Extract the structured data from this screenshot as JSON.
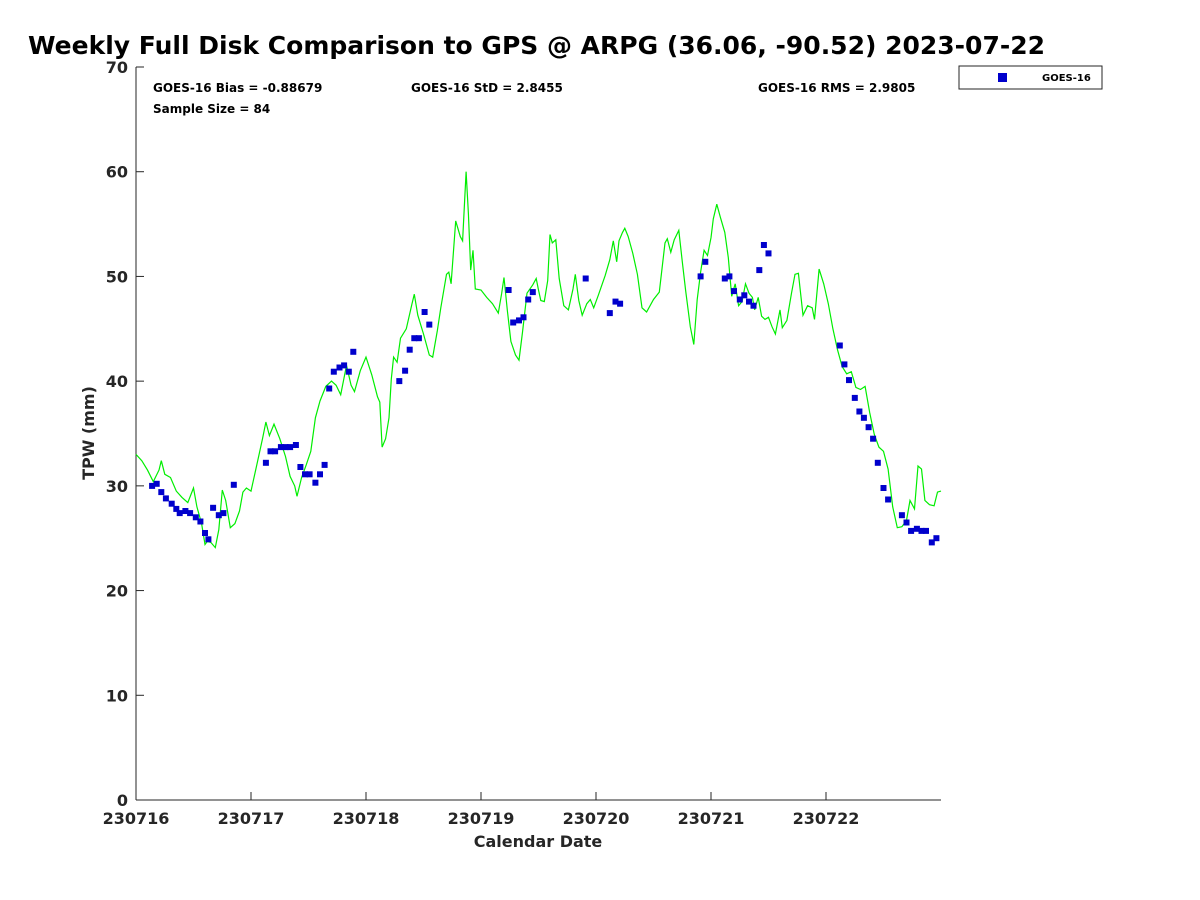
{
  "chart_data": {
    "type": "scatter",
    "title": "Weekly Full Disk Comparison to GPS @ ARPG (36.06, -90.52) 2023-07-22",
    "xlabel": "Calendar Date",
    "ylabel": "TPW (mm)",
    "xlim": [
      0,
      7
    ],
    "ylim": [
      0,
      70
    ],
    "x_ticks": [
      {
        "value": 0,
        "label": "230716"
      },
      {
        "value": 1,
        "label": "230717"
      },
      {
        "value": 2,
        "label": "230718"
      },
      {
        "value": 3,
        "label": "230719"
      },
      {
        "value": 4,
        "label": "230720"
      },
      {
        "value": 5,
        "label": "230721"
      },
      {
        "value": 6,
        "label": "230722"
      }
    ],
    "y_ticks": [
      0,
      10,
      20,
      30,
      40,
      50,
      60,
      70
    ],
    "stats": {
      "bias": "GOES-16 Bias = -0.88679",
      "std": "GOES-16 StD = 2.8455",
      "rms": "GOES-16 RMS = 2.9805",
      "sample": "Sample Size = 84"
    },
    "legend": {
      "position": "top-right",
      "entries": [
        "GOES-16"
      ]
    },
    "colors": {
      "goes": "#0000cc",
      "gps": "#00ee00"
    },
    "series": [
      {
        "name": "GOES-16",
        "marker": "square",
        "points": [
          [
            0.14,
            30.0
          ],
          [
            0.18,
            30.2
          ],
          [
            0.22,
            29.4
          ],
          [
            0.26,
            28.8
          ],
          [
            0.31,
            28.3
          ],
          [
            0.35,
            27.8
          ],
          [
            0.38,
            27.4
          ],
          [
            0.43,
            27.6
          ],
          [
            0.47,
            27.4
          ],
          [
            0.52,
            27.0
          ],
          [
            0.56,
            26.6
          ],
          [
            0.6,
            25.5
          ],
          [
            0.63,
            24.9
          ],
          [
            0.67,
            27.9
          ],
          [
            0.72,
            27.2
          ],
          [
            0.76,
            27.4
          ],
          [
            0.85,
            30.1
          ],
          [
            1.13,
            32.2
          ],
          [
            1.17,
            33.3
          ],
          [
            1.21,
            33.3
          ],
          [
            1.26,
            33.7
          ],
          [
            1.3,
            33.7
          ],
          [
            1.34,
            33.7
          ],
          [
            1.39,
            33.9
          ],
          [
            1.43,
            31.8
          ],
          [
            1.47,
            31.1
          ],
          [
            1.51,
            31.1
          ],
          [
            1.56,
            30.3
          ],
          [
            1.6,
            31.1
          ],
          [
            1.64,
            32.0
          ],
          [
            1.68,
            39.3
          ],
          [
            1.72,
            40.9
          ],
          [
            1.77,
            41.3
          ],
          [
            1.81,
            41.5
          ],
          [
            1.85,
            40.9
          ],
          [
            1.89,
            42.8
          ],
          [
            2.29,
            40.0
          ],
          [
            2.34,
            41.0
          ],
          [
            2.38,
            43.0
          ],
          [
            2.42,
            44.1
          ],
          [
            2.46,
            44.1
          ],
          [
            2.51,
            46.6
          ],
          [
            2.55,
            45.4
          ],
          [
            3.24,
            48.7
          ],
          [
            3.28,
            45.6
          ],
          [
            3.33,
            45.8
          ],
          [
            3.37,
            46.1
          ],
          [
            3.41,
            47.8
          ],
          [
            3.45,
            48.5
          ],
          [
            3.91,
            49.8
          ],
          [
            4.12,
            46.5
          ],
          [
            4.17,
            47.6
          ],
          [
            4.21,
            47.4
          ],
          [
            4.91,
            50.0
          ],
          [
            4.95,
            51.4
          ],
          [
            5.12,
            49.8
          ],
          [
            5.16,
            50.0
          ],
          [
            5.2,
            48.6
          ],
          [
            5.25,
            47.8
          ],
          [
            5.29,
            48.2
          ],
          [
            5.33,
            47.6
          ],
          [
            5.37,
            47.2
          ],
          [
            5.42,
            50.6
          ],
          [
            5.46,
            53.0
          ],
          [
            5.5,
            52.2
          ],
          [
            6.12,
            43.4
          ],
          [
            6.16,
            41.6
          ],
          [
            6.2,
            40.1
          ],
          [
            6.25,
            38.4
          ],
          [
            6.29,
            37.1
          ],
          [
            6.33,
            36.5
          ],
          [
            6.37,
            35.6
          ],
          [
            6.41,
            34.5
          ],
          [
            6.45,
            32.2
          ],
          [
            6.5,
            29.8
          ],
          [
            6.54,
            28.7
          ],
          [
            6.66,
            27.2
          ],
          [
            6.7,
            26.5
          ],
          [
            6.74,
            25.7
          ],
          [
            6.79,
            25.9
          ],
          [
            6.83,
            25.7
          ],
          [
            6.87,
            25.7
          ],
          [
            6.92,
            24.6
          ],
          [
            6.96,
            25.0
          ]
        ]
      },
      {
        "name": "GPS",
        "marker": "line",
        "points": [
          [
            0.0,
            33.0
          ],
          [
            0.05,
            32.4
          ],
          [
            0.1,
            31.5
          ],
          [
            0.15,
            30.4
          ],
          [
            0.2,
            31.5
          ],
          [
            0.22,
            32.4
          ],
          [
            0.25,
            31.1
          ],
          [
            0.3,
            30.8
          ],
          [
            0.35,
            29.5
          ],
          [
            0.4,
            28.9
          ],
          [
            0.45,
            28.4
          ],
          [
            0.5,
            29.8
          ],
          [
            0.53,
            28.0
          ],
          [
            0.57,
            26.4
          ],
          [
            0.6,
            24.4
          ],
          [
            0.62,
            24.7
          ],
          [
            0.65,
            24.6
          ],
          [
            0.69,
            24.1
          ],
          [
            0.72,
            25.8
          ],
          [
            0.75,
            29.6
          ],
          [
            0.78,
            28.6
          ],
          [
            0.82,
            26.0
          ],
          [
            0.86,
            26.4
          ],
          [
            0.9,
            27.6
          ],
          [
            0.93,
            29.4
          ],
          [
            0.96,
            29.8
          ],
          [
            1.0,
            29.5
          ],
          [
            1.05,
            32.0
          ],
          [
            1.1,
            34.5
          ],
          [
            1.13,
            36.1
          ],
          [
            1.16,
            34.8
          ],
          [
            1.2,
            35.9
          ],
          [
            1.25,
            34.5
          ],
          [
            1.3,
            32.8
          ],
          [
            1.34,
            30.9
          ],
          [
            1.38,
            30.0
          ],
          [
            1.4,
            29.0
          ],
          [
            1.44,
            30.8
          ],
          [
            1.48,
            32.0
          ],
          [
            1.52,
            33.3
          ],
          [
            1.56,
            36.5
          ],
          [
            1.6,
            38.1
          ],
          [
            1.65,
            39.5
          ],
          [
            1.7,
            40.0
          ],
          [
            1.74,
            39.6
          ],
          [
            1.78,
            38.7
          ],
          [
            1.83,
            41.5
          ],
          [
            1.87,
            39.6
          ],
          [
            1.9,
            39.0
          ],
          [
            1.95,
            41.0
          ],
          [
            2.0,
            42.3
          ],
          [
            2.05,
            40.6
          ],
          [
            2.1,
            38.5
          ],
          [
            2.12,
            38.0
          ],
          [
            2.14,
            33.7
          ],
          [
            2.17,
            34.5
          ],
          [
            2.2,
            36.5
          ],
          [
            2.22,
            40.2
          ],
          [
            2.24,
            42.3
          ],
          [
            2.27,
            41.8
          ],
          [
            2.3,
            44.1
          ],
          [
            2.35,
            45.0
          ],
          [
            2.4,
            47.4
          ],
          [
            2.42,
            48.3
          ],
          [
            2.45,
            46.3
          ],
          [
            2.5,
            44.5
          ],
          [
            2.55,
            42.5
          ],
          [
            2.58,
            42.3
          ],
          [
            2.62,
            44.8
          ],
          [
            2.65,
            47.0
          ],
          [
            2.7,
            50.2
          ],
          [
            2.72,
            50.4
          ],
          [
            2.74,
            49.3
          ],
          [
            2.78,
            55.3
          ],
          [
            2.82,
            53.8
          ],
          [
            2.84,
            53.4
          ],
          [
            2.87,
            60.0
          ],
          [
            2.89,
            56.0
          ],
          [
            2.91,
            50.6
          ],
          [
            2.93,
            52.5
          ],
          [
            2.95,
            48.8
          ],
          [
            3.0,
            48.7
          ],
          [
            3.05,
            48.0
          ],
          [
            3.1,
            47.4
          ],
          [
            3.15,
            46.5
          ],
          [
            3.18,
            48.4
          ],
          [
            3.2,
            49.9
          ],
          [
            3.23,
            46.7
          ],
          [
            3.26,
            43.8
          ],
          [
            3.3,
            42.5
          ],
          [
            3.33,
            42.0
          ],
          [
            3.36,
            44.6
          ],
          [
            3.4,
            48.4
          ],
          [
            3.45,
            49.2
          ],
          [
            3.48,
            49.8
          ],
          [
            3.5,
            48.7
          ],
          [
            3.52,
            47.7
          ],
          [
            3.55,
            47.6
          ],
          [
            3.58,
            49.6
          ],
          [
            3.6,
            54.0
          ],
          [
            3.62,
            53.2
          ],
          [
            3.65,
            53.5
          ],
          [
            3.68,
            49.8
          ],
          [
            3.72,
            47.2
          ],
          [
            3.76,
            46.8
          ],
          [
            3.8,
            48.8
          ],
          [
            3.82,
            50.2
          ],
          [
            3.85,
            47.7
          ],
          [
            3.88,
            46.3
          ],
          [
            3.92,
            47.4
          ],
          [
            3.95,
            47.8
          ],
          [
            3.98,
            47.0
          ],
          [
            4.02,
            48.2
          ],
          [
            4.08,
            50.1
          ],
          [
            4.12,
            51.6
          ],
          [
            4.15,
            53.4
          ],
          [
            4.18,
            51.4
          ],
          [
            4.2,
            53.4
          ],
          [
            4.23,
            54.2
          ],
          [
            4.25,
            54.6
          ],
          [
            4.28,
            53.8
          ],
          [
            4.32,
            52.2
          ],
          [
            4.36,
            50.2
          ],
          [
            4.4,
            47.0
          ],
          [
            4.44,
            46.6
          ],
          [
            4.5,
            47.8
          ],
          [
            4.55,
            48.5
          ],
          [
            4.6,
            53.2
          ],
          [
            4.62,
            53.6
          ],
          [
            4.65,
            52.3
          ],
          [
            4.68,
            53.5
          ],
          [
            4.72,
            54.4
          ],
          [
            4.75,
            51.4
          ],
          [
            4.78,
            48.6
          ],
          [
            4.82,
            45.2
          ],
          [
            4.85,
            43.5
          ],
          [
            4.88,
            47.8
          ],
          [
            4.91,
            50.4
          ],
          [
            4.94,
            52.5
          ],
          [
            4.97,
            52.0
          ],
          [
            5.0,
            53.7
          ],
          [
            5.02,
            55.5
          ],
          [
            5.05,
            56.9
          ],
          [
            5.08,
            55.7
          ],
          [
            5.12,
            54.2
          ],
          [
            5.15,
            51.8
          ],
          [
            5.18,
            48.1
          ],
          [
            5.21,
            49.3
          ],
          [
            5.24,
            47.2
          ],
          [
            5.27,
            47.6
          ],
          [
            5.3,
            49.3
          ],
          [
            5.33,
            48.4
          ],
          [
            5.36,
            48.0
          ],
          [
            5.38,
            46.8
          ],
          [
            5.41,
            48.0
          ],
          [
            5.44,
            46.2
          ],
          [
            5.47,
            45.9
          ],
          [
            5.5,
            46.1
          ],
          [
            5.53,
            45.2
          ],
          [
            5.56,
            44.5
          ],
          [
            5.6,
            46.8
          ],
          [
            5.62,
            45.1
          ],
          [
            5.66,
            45.8
          ],
          [
            5.7,
            48.4
          ],
          [
            5.73,
            50.2
          ],
          [
            5.76,
            50.3
          ],
          [
            5.8,
            46.3
          ],
          [
            5.84,
            47.2
          ],
          [
            5.88,
            47.0
          ],
          [
            5.9,
            45.9
          ],
          [
            5.94,
            50.7
          ],
          [
            5.98,
            49.3
          ],
          [
            6.02,
            47.4
          ],
          [
            6.06,
            45.0
          ],
          [
            6.1,
            43.0
          ],
          [
            6.14,
            41.4
          ],
          [
            6.18,
            40.7
          ],
          [
            6.22,
            40.9
          ],
          [
            6.26,
            39.4
          ],
          [
            6.3,
            39.2
          ],
          [
            6.34,
            39.5
          ],
          [
            6.38,
            37.0
          ],
          [
            6.42,
            34.9
          ],
          [
            6.46,
            33.7
          ],
          [
            6.5,
            33.3
          ],
          [
            6.54,
            31.6
          ],
          [
            6.58,
            28.0
          ],
          [
            6.62,
            26.0
          ],
          [
            6.66,
            26.1
          ],
          [
            6.7,
            26.7
          ],
          [
            6.73,
            28.6
          ],
          [
            6.77,
            27.8
          ],
          [
            6.8,
            31.9
          ],
          [
            6.83,
            31.6
          ],
          [
            6.86,
            28.6
          ],
          [
            6.9,
            28.2
          ],
          [
            6.94,
            28.1
          ],
          [
            6.97,
            29.4
          ],
          [
            7.0,
            29.5
          ]
        ]
      }
    ]
  }
}
